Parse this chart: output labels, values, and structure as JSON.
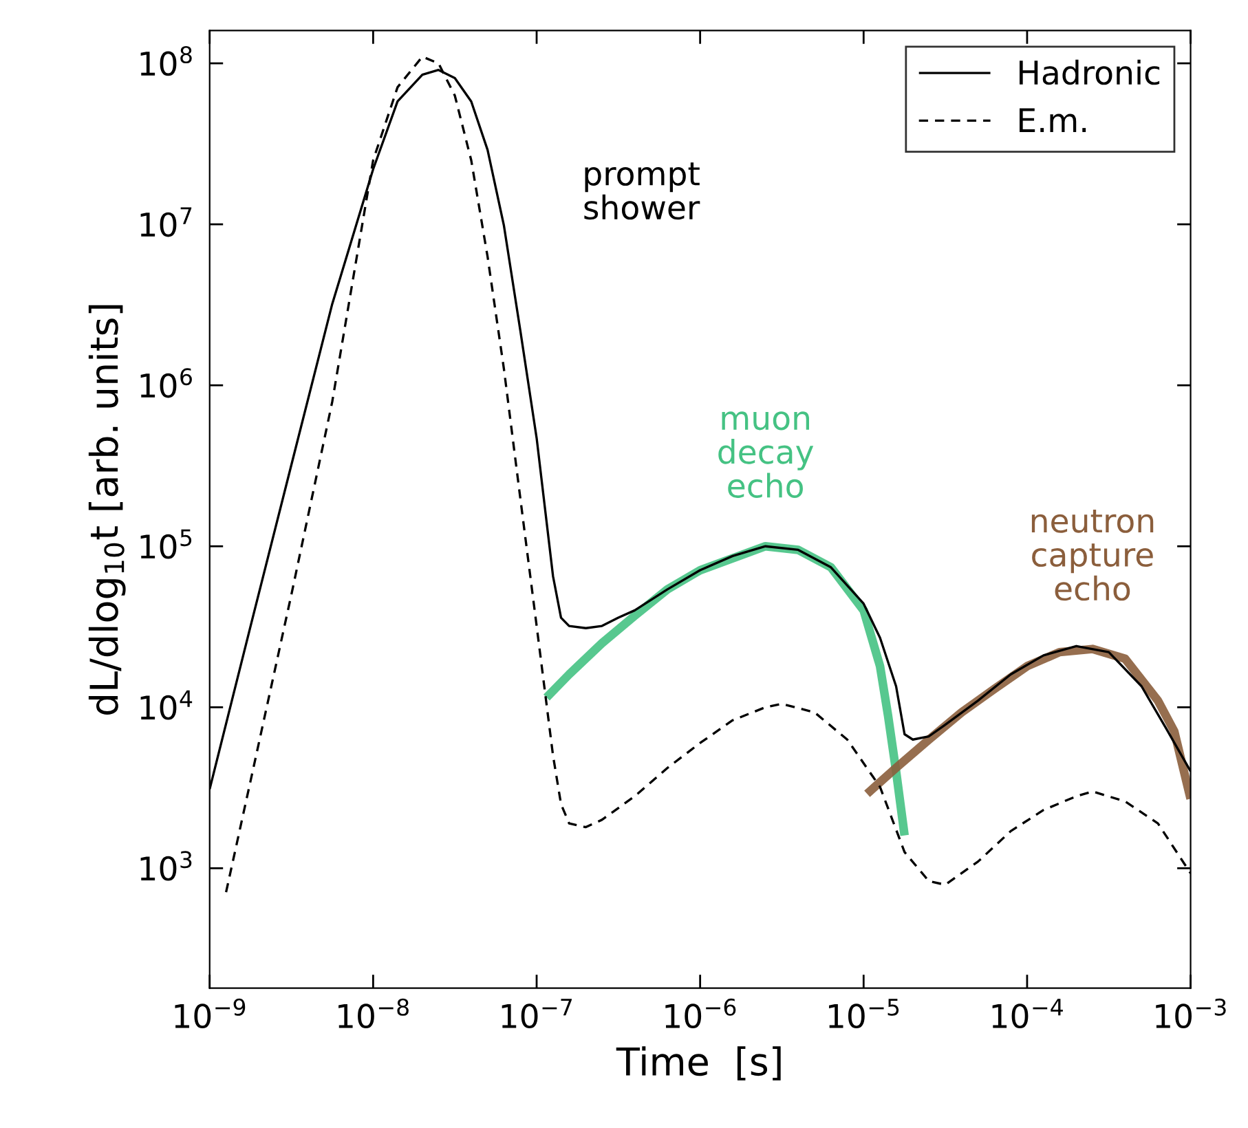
{
  "chart_data": {
    "type": "line",
    "xlabel": "Time  [s]",
    "ylabel": "dL/dlog$_{10}$t [arb. units]",
    "log": "xy",
    "xlim": [
      1e-09,
      0.001
    ],
    "ylim": [
      180,
      160000000.0
    ],
    "xticks": [
      {
        "value": 1e-09,
        "label": "10$^{−9}$"
      },
      {
        "value": 1e-08,
        "label": "10$^{−8}$"
      },
      {
        "value": 1e-07,
        "label": "10$^{−7}$"
      },
      {
        "value": 1e-06,
        "label": "10$^{−6}$"
      },
      {
        "value": 1e-05,
        "label": "10$^{−5}$"
      },
      {
        "value": 0.0001,
        "label": "10$^{−4}$"
      },
      {
        "value": 0.001,
        "label": "10$^{−3}$"
      }
    ],
    "yticks": [
      {
        "value": 1000.0,
        "label": "10$^{3}$"
      },
      {
        "value": 10000.0,
        "label": "10$^{4}$"
      },
      {
        "value": 100000.0,
        "label": "10$^{5}$"
      },
      {
        "value": 1000000.0,
        "label": "10$^{6}$"
      },
      {
        "value": 10000000.0,
        "label": "10$^{7}$"
      },
      {
        "value": 100000000.0,
        "label": "10$^{8}$"
      }
    ],
    "grid": false,
    "legend": "top right",
    "marker": "none",
    "annotations": [
      "prompt\nshower"
    ],
    "series": [
      {
        "name": "muon\ndecay\necho",
        "color": "#45c283",
        "x": [
          1.15e-07,
          1.58e-07,
          2.51e-07,
          3.98e-07,
          6.31e-07,
          1e-06,
          2.51e-06,
          3.98e-06,
          6.31e-06,
          1e-05,
          1.26e-05,
          1.41e-05,
          1.58e-05,
          1.78e-05
        ],
        "values": [
          11500.0,
          16000.0,
          25000.0,
          37000.0,
          54000.0,
          71000.0,
          100000.0,
          95000.0,
          74000.0,
          40000.0,
          18000.0,
          8900.0,
          4000.0,
          1600.0
        ]
      },
      {
        "name": "neutron\ncapture\necho",
        "color": "#8b5e3c",
        "x": [
          1.05e-05,
          1.58e-05,
          2.51e-05,
          3.98e-05,
          6.31e-05,
          0.0001,
          0.000158,
          0.000251,
          0.000398,
          0.000631,
          0.000794,
          0.001
        ],
        "values": [
          2900.0,
          4200.0,
          6300.0,
          9300.0,
          13000.0,
          18000.0,
          22000.0,
          23000.0,
          20000.0,
          11000.0,
          7100.0,
          2700.0
        ]
      },
      {
        "name": "Hadronic",
        "color": "#000000",
        "line_style": "solid",
        "x": [
          1e-09,
          1.78e-09,
          3.16e-09,
          5.62e-09,
          1e-08,
          1.41e-08,
          2e-08,
          2.51e-08,
          3.16e-08,
          3.98e-08,
          5.01e-08,
          6.31e-08,
          7.94e-08,
          1e-07,
          1.26e-07,
          1.41e-07,
          1.58e-07,
          2e-07,
          2.51e-07,
          3.16e-07,
          3.98e-07,
          6.31e-07,
          1e-06,
          1.58e-06,
          2.51e-06,
          3.98e-06,
          6.31e-06,
          1e-05,
          1.26e-05,
          1.58e-05,
          1.78e-05,
          2e-05,
          2.51e-05,
          3.16e-05,
          5.01e-05,
          7.94e-05,
          0.000126,
          0.0002,
          0.000316,
          0.000501,
          0.000708,
          0.001
        ],
        "values": [
          3100.0,
          32000.0,
          320000.0,
          3200000.0,
          22000000.0,
          58000000.0,
          85000000.0,
          91000000.0,
          81000000.0,
          58000000.0,
          29000000.0,
          9800000.0,
          2200000.0,
          470000.0,
          65000.0,
          36000.0,
          32000.0,
          31000.0,
          32000.0,
          36000.0,
          40000.0,
          54000.0,
          71000.0,
          87000.0,
          100000.0,
          95000.0,
          74000.0,
          44000.0,
          27000.0,
          13500.0,
          6800.0,
          6300.0,
          6600.0,
          7800.0,
          11000.0,
          16000.0,
          21000.0,
          24000.0,
          22000.0,
          13500.0,
          7400.0,
          4000.0
        ]
      },
      {
        "name": "E.m.",
        "color": "#000000",
        "line_style": "dashed",
        "x": [
          1.26e-09,
          1.78e-09,
          3.16e-09,
          5.62e-09,
          1e-08,
          1.41e-08,
          2e-08,
          2.51e-08,
          3.16e-08,
          3.98e-08,
          5.01e-08,
          6.31e-08,
          7.94e-08,
          1e-07,
          1.26e-07,
          1.41e-07,
          1.58e-07,
          2e-07,
          2.51e-07,
          3.98e-07,
          6.31e-07,
          1e-06,
          1.58e-06,
          2.51e-06,
          3.16e-06,
          5.01e-06,
          7.94e-06,
          1.26e-05,
          1.78e-05,
          2.51e-05,
          3.16e-05,
          5.01e-05,
          7.94e-05,
          0.000126,
          0.0002,
          0.000251,
          0.000398,
          0.000631,
          0.001
        ],
        "values": [
          710,
          3500.0,
          50000.0,
          790000.0,
          25000000.0,
          71000000.0,
          110000000.0,
          100000000.0,
          63000000.0,
          25000000.0,
          6300000.0,
          1260000.0,
          200000.0,
          32000.0,
          5000.0,
          2500.0,
          1900.0,
          1800.0,
          2000.0,
          2800.0,
          4200.0,
          6000.0,
          8300.0,
          10000.0,
          10500.0,
          9300.0,
          6300.0,
          3200.0,
          1260.0,
          830,
          790,
          1100.0,
          1700.0,
          2300.0,
          2800.0,
          3000.0,
          2600.0,
          1900.0,
          930
        ]
      }
    ]
  }
}
